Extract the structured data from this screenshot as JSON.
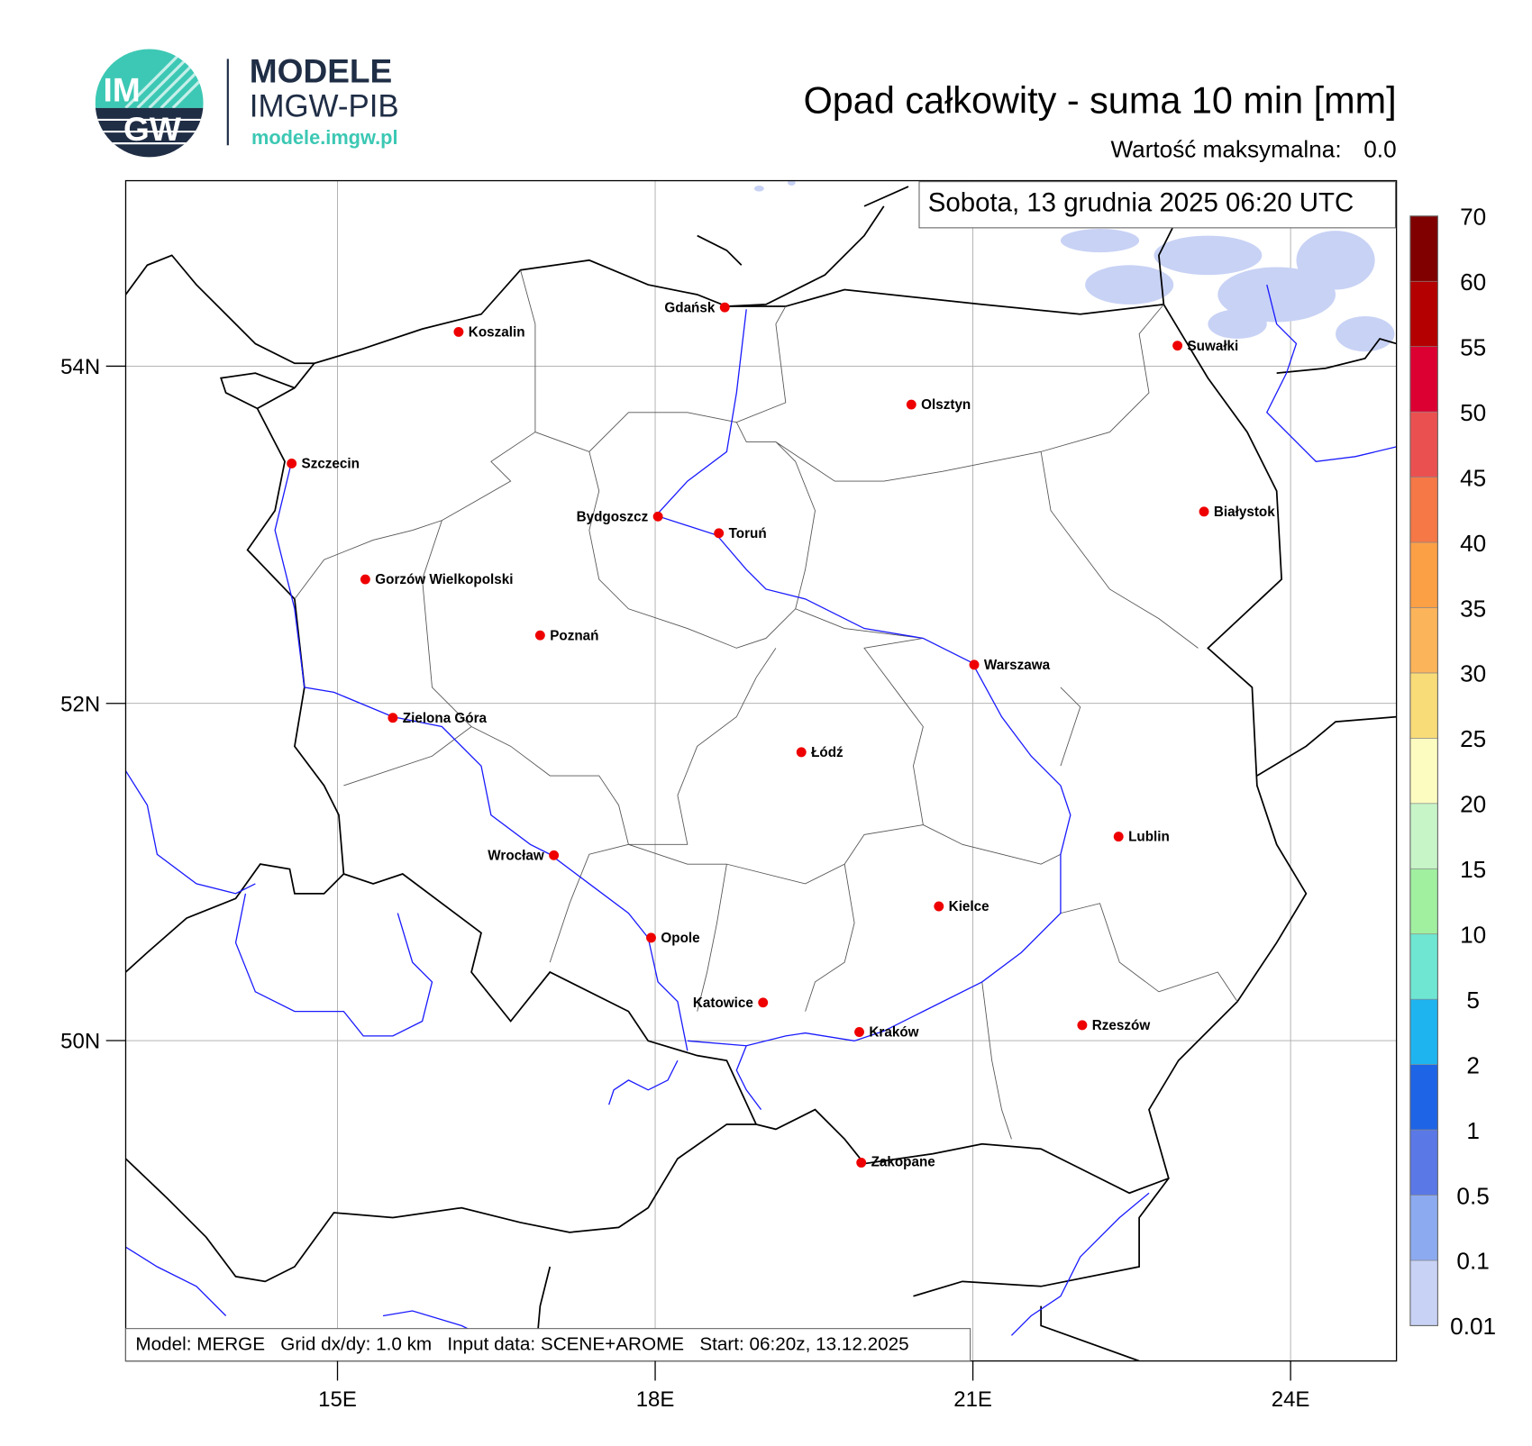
{
  "logo": {
    "badge_top": "IM",
    "badge_bottom": "GW",
    "name": "MODELE",
    "org": "IMGW-PIB",
    "url": "modele.imgw.pl"
  },
  "header": {
    "title": "Opad całkowity - suma 10 min [mm]",
    "max_label": "Wartość maksymalna:",
    "max_value": "0.0"
  },
  "map": {
    "date": "Sobota, 13 grudnia 2025 06:20 UTC",
    "xlim": [
      13,
      25
    ],
    "ylim": [
      48.1,
      55.1
    ],
    "xticks": [
      {
        "value": 15,
        "label": "15E"
      },
      {
        "value": 18,
        "label": "18E"
      },
      {
        "value": 21,
        "label": "21E"
      },
      {
        "value": 24,
        "label": "24E"
      }
    ],
    "yticks": [
      {
        "value": 50,
        "label": "50N"
      },
      {
        "value": 52,
        "label": "52N"
      },
      {
        "value": 54,
        "label": "54N"
      }
    ],
    "grid": true,
    "cities": [
      "Gdańsk",
      "Koszalin",
      "Suwałki",
      "Olsztyn",
      "Szczecin",
      "Białystok",
      "Bydgoszcz",
      "Toruń",
      "Gorzów Wielkopolski",
      "Poznań",
      "Warszawa",
      "Zielona Góra",
      "Łódź",
      "Lublin",
      "Wrocław",
      "Kielce",
      "Opole",
      "Katowice",
      "Kraków",
      "Rzeszów",
      "Zakopane"
    ],
    "footer": "Model: MERGE   Grid dx/dy: 1.0 km   Input data: SCENE+AROME   Start: 06:20z, 13.12.2025"
  },
  "colorbar": {
    "levels": [
      0.01,
      0.1,
      0.5,
      1,
      2,
      5,
      10,
      15,
      20,
      25,
      30,
      35,
      40,
      45,
      50,
      55,
      60,
      70
    ],
    "colors": [
      "#c8d2f5",
      "#8caaf0",
      "#5a78e6",
      "#1e64e6",
      "#1eb4f0",
      "#6ee6d2",
      "#a0f0a0",
      "#c8f5c8",
      "#fcfcc0",
      "#f8dc78",
      "#fcb45a",
      "#fca046",
      "#f57846",
      "#ea5050",
      "#dc0032",
      "#b40000",
      "#800000"
    ]
  }
}
